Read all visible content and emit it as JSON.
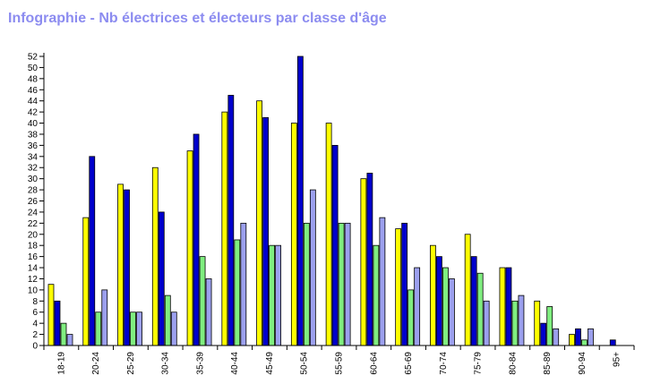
{
  "chart_data": {
    "type": "bar",
    "title": "Infographie - Nb électrices et électeurs par classe d'âge",
    "xlabel": "",
    "ylabel": "",
    "ylim": [
      0,
      52
    ],
    "y_ticks": [
      0,
      2,
      4,
      6,
      8,
      10,
      12,
      14,
      16,
      18,
      20,
      22,
      24,
      26,
      28,
      30,
      32,
      34,
      36,
      38,
      40,
      42,
      44,
      46,
      48,
      50,
      52
    ],
    "grid": false,
    "legend": "none",
    "categories": [
      "18-19",
      "20-24",
      "25-29",
      "30-34",
      "35-39",
      "40-44",
      "45-49",
      "50-54",
      "55-59",
      "60-64",
      "65-69",
      "70-74",
      "75-79",
      "80-84",
      "85-89",
      "90-94",
      "95+"
    ],
    "series": [
      {
        "color": "#ffff00",
        "values": [
          11,
          23,
          29,
          32,
          35,
          42,
          44,
          40,
          40,
          30,
          21,
          18,
          20,
          14,
          8,
          2,
          0
        ]
      },
      {
        "color": "#0000cc",
        "values": [
          8,
          34,
          28,
          24,
          38,
          45,
          41,
          52,
          36,
          31,
          22,
          16,
          16,
          14,
          4,
          3,
          1
        ]
      },
      {
        "color": "#80ee80",
        "values": [
          4,
          6,
          6,
          9,
          16,
          19,
          18,
          22,
          22,
          18,
          10,
          14,
          13,
          8,
          7,
          1,
          0
        ]
      },
      {
        "color": "#9ca0ee",
        "values": [
          2,
          10,
          6,
          6,
          12,
          22,
          18,
          28,
          22,
          23,
          14,
          12,
          8,
          9,
          3,
          3,
          0
        ]
      }
    ]
  }
}
